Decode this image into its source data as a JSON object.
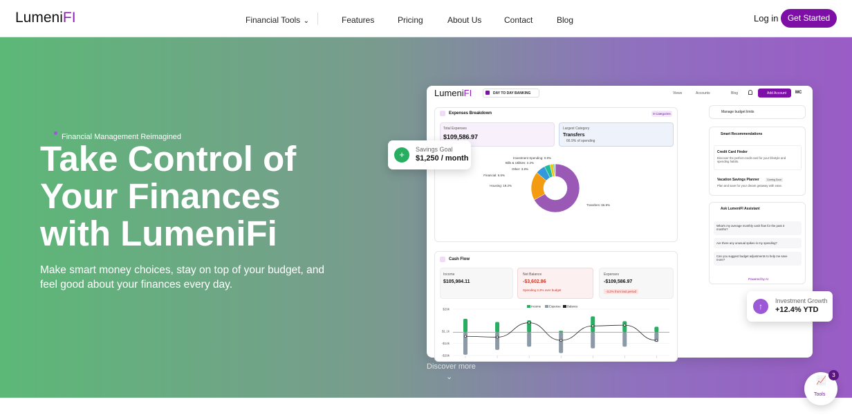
{
  "nav": {
    "logo_main": "Lumeni",
    "logo_accent": "FI",
    "links": [
      "Financial Tools",
      "Features",
      "Pricing",
      "About Us",
      "Contact",
      "Blog"
    ],
    "login": "Log in",
    "cta": "Get Started"
  },
  "hero": {
    "eyebrow": "Financial Management Reimagined",
    "title_lines": [
      "Take Control of",
      "Your Finances",
      "with LumeniFi"
    ],
    "subtitle": "Make smart money choices, stay on top of your budget, and feel good about your finances every day.",
    "discover": "Discover more"
  },
  "floating": {
    "savings": {
      "label": "Savings Goal",
      "value": "$1,250 / month"
    },
    "investment": {
      "label": "Investment Growth",
      "value": "+12.4% YTD"
    }
  },
  "tools": {
    "label": "Tools",
    "badge": "3"
  },
  "dashboard": {
    "header": {
      "logo_main": "Lumeni",
      "logo_accent": "FI",
      "mode": "DAY TO DAY BANKING",
      "links": [
        "Views",
        "Accounts",
        "Blog"
      ],
      "add": "Add Account",
      "avatar": "MC"
    },
    "expenses": {
      "title": "Expenses Breakdown",
      "badge": "8 Categories",
      "total_label": "Total Expenses",
      "total_value": "$109,586.97",
      "largest_label": "Largest Category",
      "largest_name": "Transfers",
      "largest_note": "66.9% of spending",
      "donut": {
        "slices": [
          {
            "label": "Transfers: 66.9%",
            "value": 66.9,
            "color": "#9b59b6"
          },
          {
            "label": "Housing: 19.2%",
            "value": 19.2,
            "color": "#f39c12"
          },
          {
            "label": "Financial: 6.5%",
            "value": 6.5,
            "color": "#3498db"
          },
          {
            "label": "Other: 3.8%",
            "value": 3.8,
            "color": "#1abc9c"
          },
          {
            "label": "Bills & Utilities: 2.2%",
            "value": 2.2,
            "color": "#f1c40f"
          },
          {
            "label": "Investment Spending: 0.9%",
            "value": 0.9,
            "color": "#2ecc71"
          }
        ]
      }
    },
    "cashflow": {
      "title": "Cash Flow",
      "cards": [
        {
          "label": "Income",
          "value": "$105,984.11"
        },
        {
          "label": "Net Balance",
          "value": "-$3,602.86",
          "note": "Spending 3.3% over budget"
        },
        {
          "label": "Expenses",
          "value": "-$109,586.97",
          "note": "-3.2% from last period"
        }
      ],
      "chart": {
        "type": "bar",
        "ylim": [
          -29000,
          29000
        ],
        "yticks": [
          {
            "value": 29000,
            "label": "$29k"
          },
          {
            "value": 1100,
            "label": "$1.1k"
          },
          {
            "value": -14000,
            "label": "-$14k"
          },
          {
            "value": -29000,
            "label": "-$29k"
          }
        ],
        "series": [
          {
            "name": "Income",
            "color": "#27ae60",
            "values": [
              17000,
              13000,
              15000,
              2000,
              20000,
              14000,
              7000
            ]
          },
          {
            "name": "Expense",
            "color": "#8c99a6",
            "values": [
              -28000,
              -22000,
              -18000,
              -26000,
              -20000,
              -18000,
              -12000
            ]
          },
          {
            "name": "Balance",
            "color": "#222222",
            "values": [
              -5000,
              -6000,
              12000,
              -10000,
              8000,
              9000,
              -10000
            ]
          }
        ]
      }
    },
    "sidebar": {
      "budget": "Manage budget limits",
      "recs_title": "Smart Recommendations",
      "recs": [
        {
          "title": "Credit Card Finder",
          "text": "Discover the perfect credit card for your lifestyle and spending habits."
        },
        {
          "title": "Vacation Savings Planner",
          "badge": "Coming Soon",
          "text": "Plan and save for your dream getaway with ease."
        }
      ],
      "assistant_title": "Ask LumeniFI Assistant",
      "questions": [
        "What's my average monthly cash flow for the past 3 months?",
        "Are there any unusual spikes in my spending?",
        "Can you suggest budget adjustments to help me save more?"
      ],
      "powered": "Powered by AI"
    }
  }
}
